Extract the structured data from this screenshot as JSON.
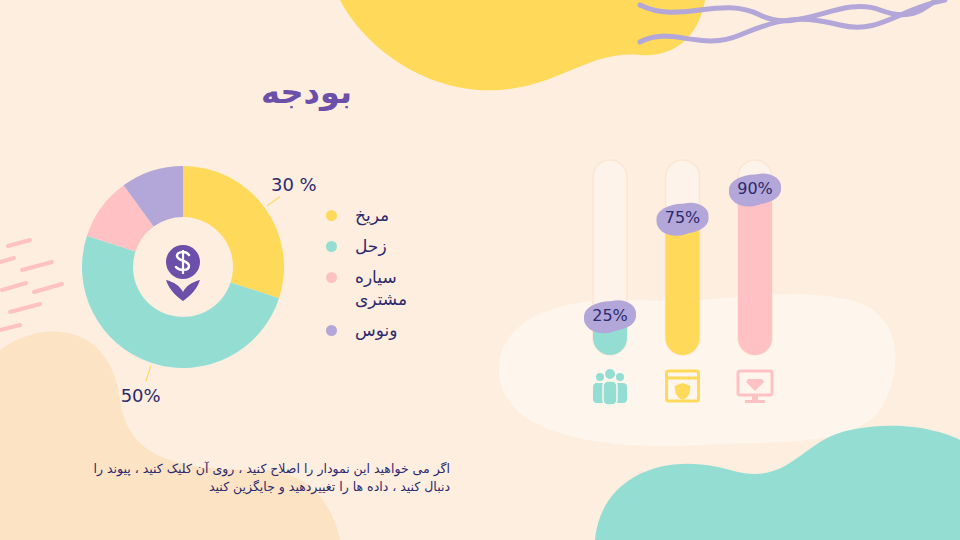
{
  "chart_data": [
    {
      "type": "pie",
      "title": "بودجه",
      "categories": [
        "مریخ",
        "زحل",
        "سیاره مشتری",
        "ونوس"
      ],
      "values": [
        30,
        50,
        10,
        10
      ],
      "colors": [
        "#ffd95a",
        "#93ddd3",
        "#ffc1c4",
        "#b3a6d8"
      ],
      "data_labels": true,
      "value_labels": [
        "30 %",
        "50%",
        null,
        null
      ],
      "legend": "right",
      "annotations": [
        "اگر می خواهید این نمودار را اصلاح کنید ، روی آن کلیک کنید ، پیوند را دنبال کنید ، داده ها را تغییردهید و جایگزین کنید"
      ]
    },
    {
      "type": "bar",
      "categories": [
        null,
        null,
        null
      ],
      "values": [
        25,
        75,
        90
      ],
      "colors": [
        "#93ddd3",
        "#ffd95a",
        "#ffc1c4"
      ],
      "ylim": [
        0,
        100
      ],
      "data_labels": true,
      "value_labels": [
        "25%",
        "75%",
        "90%"
      ],
      "tick_labels": false
    }
  ]
}
